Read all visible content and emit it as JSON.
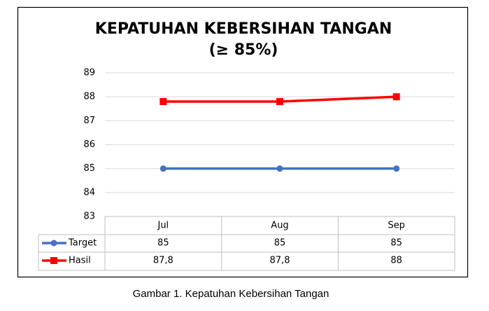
{
  "chart_data": {
    "type": "line",
    "title": "KEPATUHAN KEBERSIHAN TANGAN",
    "subtitle": "(≥ 85%)",
    "categories": [
      "Jul",
      "Aug",
      "Sep"
    ],
    "series": [
      {
        "name": "Target",
        "color": "#4472c4",
        "marker": "circle",
        "values": [
          85,
          85,
          85
        ]
      },
      {
        "name": "Hasil",
        "color": "#ff0000",
        "marker": "square",
        "values": [
          87.8,
          87.8,
          88
        ],
        "value_labels": [
          "87,8",
          "87,8",
          "88"
        ]
      }
    ],
    "ylim": [
      83,
      89
    ],
    "yticks": [
      83,
      84,
      85,
      86,
      87,
      88,
      89
    ],
    "grid": true,
    "caption": "Gambar 1. Kepatuhan Kebersihan Tangan"
  }
}
